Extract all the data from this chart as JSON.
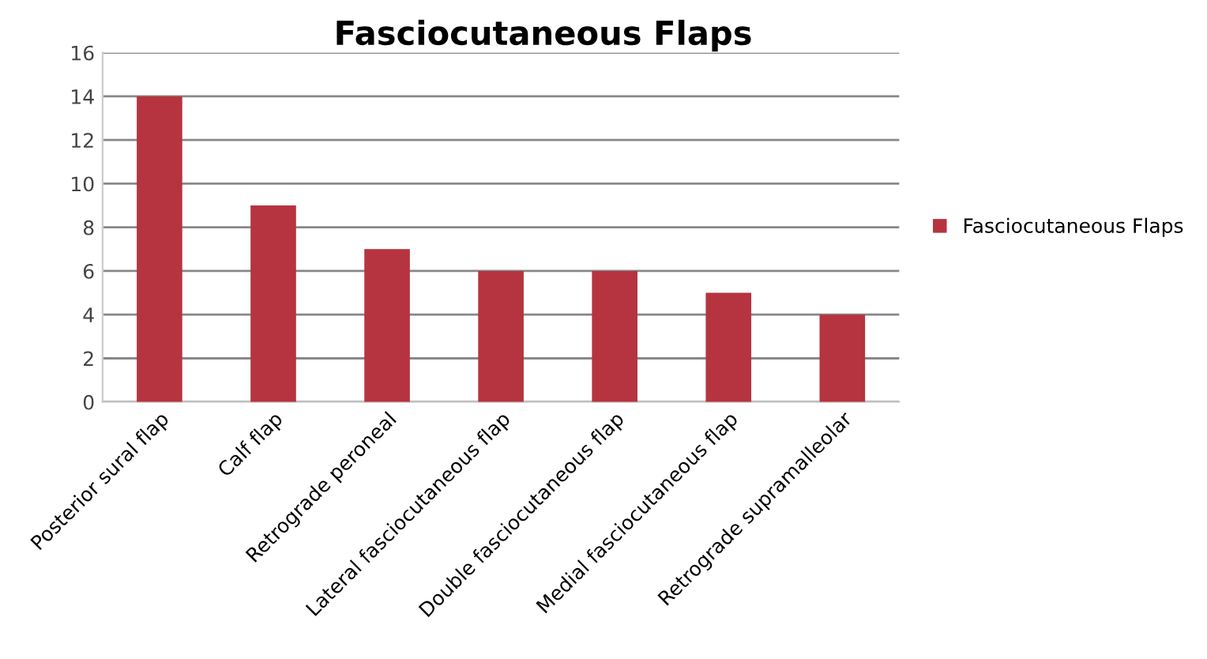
{
  "chart_data": {
    "type": "bar",
    "title": "Fasciocutaneous Flaps",
    "categories": [
      "Posterior sural flap",
      "Calf flap",
      "Retrograde peroneal",
      "Lateral fasciocutaneous flap",
      "Double fasciocutaneous flap",
      "Medial fasciocutaneous flap",
      "Retrograde supramalleolar"
    ],
    "series": [
      {
        "name": "Fasciocutaneous Flaps",
        "color": "#b5343f",
        "values": [
          14,
          9,
          7,
          6,
          6,
          5,
          4
        ]
      }
    ],
    "ylim": [
      0,
      16
    ],
    "yticks": [
      0,
      2,
      4,
      6,
      8,
      10,
      12,
      14,
      16
    ],
    "grid": "y",
    "legend": "right"
  }
}
